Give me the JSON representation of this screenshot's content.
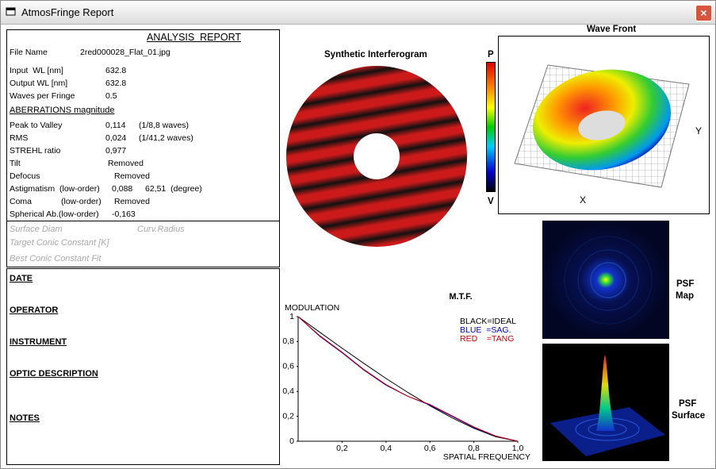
{
  "window": {
    "title": "AtmosFringe  Report"
  },
  "report": {
    "heading": "ANALYSIS  REPORT",
    "file_name_label": "File Name",
    "file_name": "2red000028_Flat_01.jpg",
    "inputs": [
      {
        "label": "Input  WL [nm]",
        "value": "632.8"
      },
      {
        "label": "Output WL [nm]",
        "value": "632.8"
      },
      {
        "label": "Waves per Fringe",
        "value": "0.5"
      }
    ],
    "aberrations_heading": "ABERRATIONS magnitude",
    "aberrations": [
      {
        "label": "Peak to Valley",
        "value": "0,114",
        "note": "(1/8,8 waves)"
      },
      {
        "label": "RMS",
        "value": "0,024",
        "note": "(1/41,2 waves)"
      },
      {
        "label": "STREHL ratio",
        "value": "0,977"
      },
      {
        "label": "Tilt",
        "value": "Removed"
      },
      {
        "label": "Defocus",
        "value": "Removed"
      },
      {
        "label": "Astigmatism  (low-order)",
        "value": "0,088",
        "note": "62,51  (degree)"
      },
      {
        "label": "Coma",
        "order": "(low-order)",
        "value": "Removed"
      },
      {
        "label": "Spherical Ab.(low-order)",
        "value": "-0,163"
      }
    ],
    "surface_fields": [
      "Surface Diam",
      "Curv.Radius",
      "Target Conic Constant [K]",
      "Best Conic Constant Fit"
    ],
    "sections": [
      "DATE",
      "OPERATOR",
      "INSTRUMENT",
      "OPTIC DESCRIPTION",
      "NOTES"
    ]
  },
  "images": {
    "interferogram_title": "Synthetic Interferogram",
    "wavefront_title": "Wave Front",
    "scale_top": "P",
    "scale_bottom": "V",
    "axis_x": "X",
    "axis_y": "Y",
    "psf_map": [
      "PSF",
      "Map"
    ],
    "psf_surface": [
      "PSF",
      "Surface"
    ]
  },
  "chart_data": {
    "type": "line",
    "title": "M.T.F.",
    "y_label": "MODULATION",
    "x_label": "SPATIAL FREQUENCY",
    "x": [
      0,
      0.1,
      0.2,
      0.3,
      0.4,
      0.5,
      0.6,
      0.7,
      0.8,
      0.9,
      1.0
    ],
    "series": [
      {
        "name": "BLACK=IDEAL",
        "color": "#000000",
        "values": [
          1,
          0.873,
          0.747,
          0.624,
          0.504,
          0.391,
          0.285,
          0.188,
          0.104,
          0.036,
          0
        ]
      },
      {
        "name": "BLUE  =SAG.",
        "color": "#0000cc",
        "values": [
          1,
          0.84,
          0.71,
          0.57,
          0.45,
          0.36,
          0.29,
          0.2,
          0.11,
          0.04,
          0
        ]
      },
      {
        "name": "RED    =TANG",
        "color": "#cc0000",
        "values": [
          1,
          0.845,
          0.715,
          0.575,
          0.455,
          0.36,
          0.295,
          0.205,
          0.115,
          0.042,
          0
        ]
      }
    ],
    "xlim": [
      0,
      1
    ],
    "ylim": [
      0,
      1
    ],
    "xticks": [
      {
        "value": 0.2,
        "label": "0,2"
      },
      {
        "value": 0.4,
        "label": "0,4"
      },
      {
        "value": 0.6,
        "label": "0,6"
      },
      {
        "value": 0.8,
        "label": "0,8"
      },
      {
        "value": 1.0,
        "label": "1,0"
      }
    ],
    "yticks": [
      0,
      {
        "value": 0.2,
        "label": "0,2"
      },
      {
        "value": 0.4,
        "label": "0,4"
      },
      {
        "value": 0.6,
        "label": "0,6"
      },
      {
        "value": 0.8,
        "label": "0,8"
      },
      1
    ],
    "legend": "top-right"
  }
}
